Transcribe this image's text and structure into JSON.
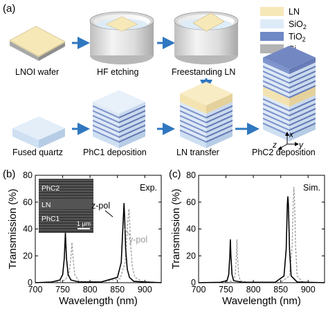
{
  "panel_a": {
    "label": "(a)",
    "steps": [
      "LNOI wafer",
      "HF etching",
      "Freestanding LN",
      "Fused quartz",
      "PhC1 deposition",
      "LN transfer",
      "PhC2 deposition"
    ],
    "legend": [
      {
        "name": "LN",
        "color": "#f7e8b8"
      },
      {
        "name": "SiO",
        "sub": "2",
        "color": "#ddebf8"
      },
      {
        "name": "TiO",
        "sub": "2",
        "color": "#6f88c6"
      },
      {
        "name": "Si",
        "color": "#b3b3b3"
      }
    ],
    "axes": {
      "z": "z",
      "x": "x",
      "y": "y"
    },
    "arrow_color": "#2f77c0"
  },
  "chart_data": [
    {
      "type": "line",
      "panel": "(b)",
      "corner_label": "Exp.",
      "xlabel": "Wavelength (nm)",
      "ylabel": "Transmission (%)",
      "xlim": [
        700,
        930
      ],
      "ylim": [
        0,
        80
      ],
      "xticks": [
        "700",
        "750",
        "800",
        "850",
        "900"
      ],
      "yticks": [
        "0",
        "20",
        "40",
        "60",
        "80"
      ],
      "series": [
        {
          "name": "z-pol",
          "style": "solid",
          "color": "#000000",
          "x": [
            700,
            730,
            745,
            750,
            753,
            755,
            757,
            760,
            765,
            780,
            820,
            850,
            857,
            861,
            862,
            863,
            865,
            868,
            872,
            880,
            900,
            930
          ],
          "y": [
            0,
            0.5,
            2,
            6,
            18,
            37,
            18,
            6,
            2,
            0.5,
            0.5,
            4,
            15,
            50,
            59,
            50,
            25,
            10,
            4,
            1,
            0.5,
            0
          ]
        },
        {
          "name": "y-pol",
          "style": "dashed",
          "color": "#9a9a9a",
          "x": [
            700,
            740,
            755,
            762,
            765,
            767,
            769,
            772,
            780,
            820,
            855,
            864,
            869,
            871,
            872,
            874,
            877,
            882,
            895,
            930
          ],
          "y": [
            0,
            0.5,
            2,
            8,
            18,
            30,
            18,
            6,
            1,
            0.5,
            3,
            15,
            45,
            55,
            50,
            30,
            12,
            4,
            1,
            0
          ]
        }
      ],
      "inset": {
        "labels": [
          "PhC2",
          "LN",
          "PhC1"
        ],
        "scale_bar": "1 μm"
      }
    },
    {
      "type": "line",
      "panel": "(c)",
      "corner_label": "Sim.",
      "xlabel": "Wavelength (nm)",
      "ylabel": "Transmission (%)",
      "xlim": [
        700,
        930
      ],
      "ylim": [
        0,
        80
      ],
      "xticks": [
        "700",
        "750",
        "800",
        "850",
        "900"
      ],
      "yticks": [
        "0",
        "20",
        "40",
        "60",
        "80"
      ],
      "series": [
        {
          "name": "z-pol",
          "style": "solid",
          "color": "#000000",
          "x": [
            700,
            740,
            752,
            755,
            757,
            758,
            759,
            761,
            764,
            780,
            840,
            856,
            860,
            862,
            863,
            864,
            866,
            869,
            880,
            930
          ],
          "y": [
            0,
            0.3,
            1.5,
            6,
            20,
            32,
            20,
            6,
            1.5,
            0.3,
            0.3,
            5,
            25,
            58,
            64,
            58,
            25,
            5,
            0.5,
            0
          ]
        },
        {
          "name": "y-pol",
          "style": "dashed",
          "color": "#9a9a9a",
          "x": [
            700,
            750,
            764,
            767,
            769,
            770,
            771,
            773,
            776,
            790,
            850,
            866,
            871,
            873,
            874,
            875,
            877,
            880,
            890,
            930
          ],
          "y": [
            0,
            0.3,
            1.5,
            6,
            20,
            32,
            20,
            6,
            1.5,
            0.3,
            0.3,
            5,
            28,
            64,
            71,
            64,
            28,
            5,
            0.5,
            0
          ]
        }
      ]
    }
  ]
}
